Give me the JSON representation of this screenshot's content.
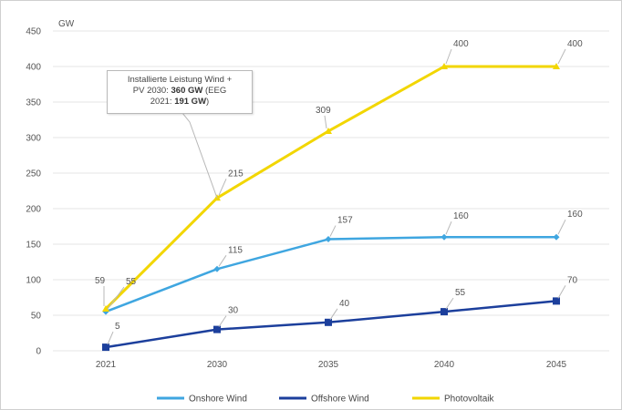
{
  "chart_data": {
    "type": "line",
    "unit_label": "GW",
    "categories": [
      "2021",
      "2030",
      "2035",
      "2040",
      "2045"
    ],
    "ylim": [
      0,
      450
    ],
    "yticks": [
      0,
      50,
      100,
      150,
      200,
      250,
      300,
      350,
      400,
      450
    ],
    "grid": true,
    "legend_position": "bottom",
    "series": [
      {
        "name": "Onshore Wind",
        "color": "#3fa6e0",
        "marker": "diamond",
        "values": [
          55,
          115,
          157,
          160,
          160
        ]
      },
      {
        "name": "Offshore Wind",
        "color": "#1c3f9c",
        "marker": "square",
        "values": [
          5,
          30,
          40,
          55,
          70
        ]
      },
      {
        "name": "Photovoltaik",
        "color": "#f2d600",
        "marker": "triangle",
        "values": [
          59,
          215,
          309,
          400,
          400
        ]
      }
    ],
    "annotation": {
      "line1": "Installierte Leistung Wind +",
      "line2_prefix": "PV 2030: ",
      "line2_bold": "360 GW",
      "line2_suffix": " (EEG",
      "line3_prefix": "2021: ",
      "line3_bold": "191 GW",
      "line3_suffix": ")"
    }
  }
}
